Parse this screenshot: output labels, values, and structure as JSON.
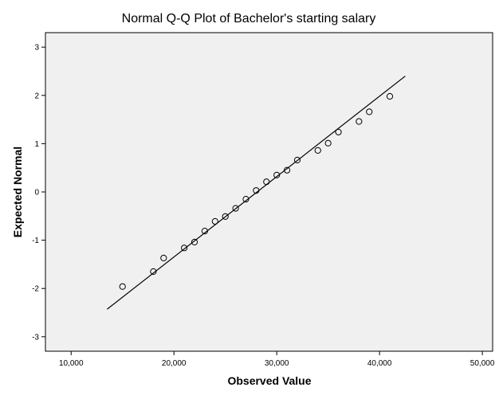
{
  "chart_data": {
    "type": "scatter",
    "title": "Normal Q-Q Plot of Bachelor's starting salary",
    "xlabel": "Observed Value",
    "ylabel": "Expected Normal",
    "xlim": [
      7500,
      51000
    ],
    "ylim": [
      -3.3,
      3.3
    ],
    "x_ticks": [
      10000,
      20000,
      30000,
      40000,
      50000
    ],
    "x_tick_labels": [
      "10,000",
      "20,000",
      "30,000",
      "40,000",
      "50,000"
    ],
    "y_ticks": [
      3,
      2,
      1,
      0,
      -1,
      -2,
      -3
    ],
    "y_tick_labels": [
      "3",
      "2",
      "1",
      "0",
      "-1",
      "-2",
      "-3"
    ],
    "grid": false,
    "background_color": "#f0f0f0",
    "line_color": "#000000",
    "marker": "open-circle",
    "reference_line": {
      "x": [
        13500,
        42500
      ],
      "y": [
        -2.43,
        2.4
      ]
    },
    "points": [
      {
        "x": 15000,
        "y": -1.96
      },
      {
        "x": 18000,
        "y": -1.65
      },
      {
        "x": 19000,
        "y": -1.37
      },
      {
        "x": 21000,
        "y": -1.16
      },
      {
        "x": 22000,
        "y": -1.04
      },
      {
        "x": 23000,
        "y": -0.81
      },
      {
        "x": 24000,
        "y": -0.61
      },
      {
        "x": 25000,
        "y": -0.51
      },
      {
        "x": 26000,
        "y": -0.34
      },
      {
        "x": 27000,
        "y": -0.15
      },
      {
        "x": 28000,
        "y": 0.03
      },
      {
        "x": 29000,
        "y": 0.21
      },
      {
        "x": 30000,
        "y": 0.35
      },
      {
        "x": 31000,
        "y": 0.45
      },
      {
        "x": 32000,
        "y": 0.66
      },
      {
        "x": 34000,
        "y": 0.86
      },
      {
        "x": 35000,
        "y": 1.01
      },
      {
        "x": 36000,
        "y": 1.24
      },
      {
        "x": 38000,
        "y": 1.46
      },
      {
        "x": 39000,
        "y": 1.66
      },
      {
        "x": 41000,
        "y": 1.98
      }
    ]
  }
}
